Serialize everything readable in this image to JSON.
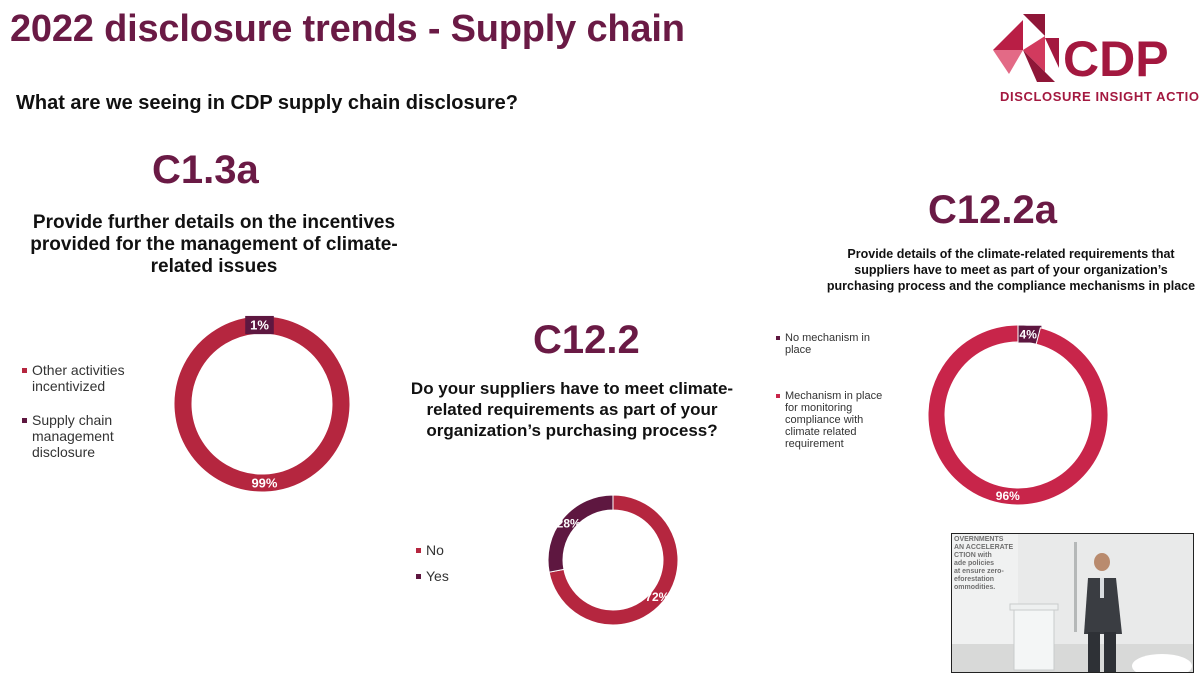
{
  "header": {
    "title": "2022 disclosure trends - Supply chain",
    "subtitle": "What are we seeing in CDP supply chain disclosure?"
  },
  "logo": {
    "name": "CDP",
    "tagline": "DISCLOSURE INSIGHT ACTION"
  },
  "colors": {
    "brand_dark": "#6a1a45",
    "ring_red": "#b5263f",
    "ring_dark": "#5e1740"
  },
  "chart_data": [
    {
      "type": "pie",
      "variant": "donut",
      "code": "C1.3a",
      "title": "Provide further details on the incentives provided for the management of climate-related issues",
      "categories": [
        "Other activities incentivized",
        "Supply chain management disclosure"
      ],
      "values": [
        99,
        1
      ],
      "labels": [
        "99%",
        "1%"
      ],
      "colors": [
        "#b5263f",
        "#5e1740"
      ],
      "legend": "left"
    },
    {
      "type": "pie",
      "variant": "donut",
      "code": "C12.2",
      "title": "Do your suppliers have to meet climate-related requirements as part of your organization’s purchasing process?",
      "categories": [
        "No",
        "Yes"
      ],
      "values": [
        72,
        28
      ],
      "labels": [
        "72%",
        "28%"
      ],
      "colors": [
        "#b5263f",
        "#5e1740"
      ],
      "legend": "left"
    },
    {
      "type": "pie",
      "variant": "donut",
      "code": "C12.2a",
      "title": "Provide details of the climate-related requirements that suppliers have to meet as part of your organization’s purchasing process and the compliance mechanisms in place",
      "categories": [
        "No mechanism in place",
        "Mechanism in place for monitoring compliance with climate related requirement"
      ],
      "values": [
        4,
        96
      ],
      "labels": [
        "4%",
        "96%"
      ],
      "colors": [
        "#5e1740",
        "#c8254a"
      ],
      "legend": "left"
    }
  ],
  "video": {
    "wall_text": "OVERNMENTS\nAN ACCELERATE\nCTION with\nade policies\nat ensure zero-\neforestation\nommodities."
  }
}
